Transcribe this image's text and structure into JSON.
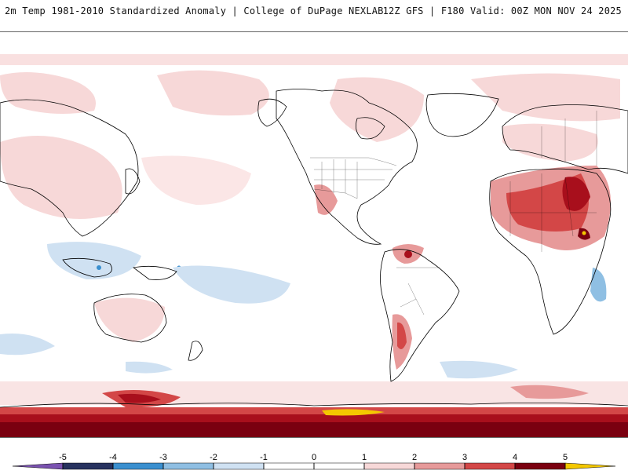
{
  "header": {
    "title_left": "2m Temp 1981-2010 Standardized Anomaly | College of DuPage NEXLAB",
    "title_right": "12Z GFS | F180 Valid: 00Z MON NOV 24 2025"
  },
  "legend": {
    "ticks": [
      "-5",
      "-4",
      "-3",
      "-2",
      "-1",
      "0",
      "1",
      "2",
      "3",
      "4",
      "5"
    ],
    "colors": {
      "m5": "#7a52b0",
      "m4": "#26315e",
      "m3": "#3a8fcf",
      "m2": "#8fbfe3",
      "m1": "#cfe1f2",
      "zero": "#ffffff",
      "p1": "#f7d8d8",
      "p2": "#e79a9a",
      "p3": "#d34747",
      "p4": "#a80f1c",
      "p5": "#7a0010",
      "over": "#f4c800"
    }
  },
  "map": {
    "coastline_color": "#000000",
    "background_color": "#ffffff"
  }
}
